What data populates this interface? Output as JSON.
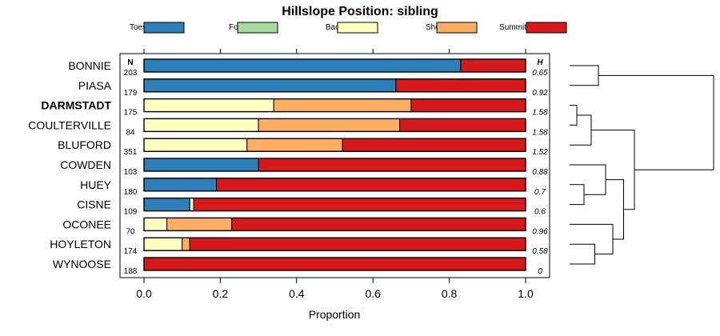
{
  "chart_data": {
    "type": "bar",
    "orientation": "horizontal",
    "stacked": true,
    "title": "Hillslope Position: sibling",
    "xlabel": "Proportion",
    "xlim": [
      0,
      1
    ],
    "x_ticks": [
      "0.0",
      "0.2",
      "0.4",
      "0.6",
      "0.8",
      "1.0"
    ],
    "x_tick_values": [
      0,
      0.2,
      0.4,
      0.6,
      0.8,
      1.0
    ],
    "n_header": "N",
    "h_header": "H",
    "legend_placement": "top",
    "bold_category": "DARMSTADT",
    "series": [
      {
        "name": "Toeslope",
        "color": "#2c7fb8"
      },
      {
        "name": "Footslope",
        "color": "#a8dba0"
      },
      {
        "name": "Backslope",
        "color": "#ffffbf"
      },
      {
        "name": "Shoulder",
        "color": "#fdae61"
      },
      {
        "name": "Summit",
        "color": "#d7191c"
      }
    ],
    "categories": [
      "BONNIE",
      "PIASA",
      "DARMSTADT",
      "COULTERVILLE",
      "BLUFORD",
      "COWDEN",
      "HUEY",
      "CISNE",
      "OCONEE",
      "HOYLETON",
      "WYNOOSE"
    ],
    "n": [
      "203",
      "179",
      "175",
      "84",
      "351",
      "103",
      "180",
      "109",
      "70",
      "174",
      "188"
    ],
    "h": [
      "0.65",
      "0.92",
      "1.58",
      "1.58",
      "1.52",
      "0.88",
      "0.7",
      "0.6",
      "0.96",
      "0.58",
      "0"
    ],
    "values": [
      [
        0.83,
        0,
        0,
        0,
        0.17
      ],
      [
        0.66,
        0,
        0,
        0,
        0.34
      ],
      [
        0,
        0,
        0.34,
        0.36,
        0.3
      ],
      [
        0,
        0,
        0.3,
        0.37,
        0.33
      ],
      [
        0,
        0,
        0.27,
        0.25,
        0.48
      ],
      [
        0.3,
        0,
        0,
        0,
        0.7
      ],
      [
        0.19,
        0,
        0,
        0,
        0.81
      ],
      [
        0.12,
        0,
        0.01,
        0,
        0.87
      ],
      [
        0,
        0,
        0.06,
        0.17,
        0.77
      ],
      [
        0,
        0,
        0.1,
        0.02,
        0.88
      ],
      [
        0,
        0,
        0,
        0,
        1.0
      ]
    ],
    "dendrogram_merges": [
      {
        "a": "BONNIE",
        "b": "PIASA",
        "height": 0.04
      },
      {
        "a": "DARMSTADT",
        "b": "COULTERVILLE",
        "height": 0.01
      },
      {
        "a": "HOYLETON",
        "b": "WYNOOSE",
        "height": 0.035
      },
      {
        "a": "HUEY",
        "b": "CISNE",
        "height": 0.02
      },
      {
        "a": "DARMSTADT+COULTERVILLE",
        "b": "BLUFORD",
        "height": 0.03
      },
      {
        "a": "OCONEE",
        "b": "HOYLETON+WYNOOSE",
        "height": 0.06
      },
      {
        "a": "COWDEN",
        "b": "HUEY+CISNE",
        "height": 0.05
      },
      {
        "a": "COWDEN+HUEY+CISNE",
        "b": "OCONEE+HOYLETON+WYNOOSE",
        "height": 0.075
      },
      {
        "a": "DARMSTADT+COULTERVILLE+BLUFORD",
        "b": "COWDEN+HUEY+CISNE+OCONEE+HOYLETON+WYNOOSE",
        "height": 0.09
      },
      {
        "a": "BONNIE+PIASA",
        "b": "REST",
        "height": 0.2
      }
    ]
  }
}
